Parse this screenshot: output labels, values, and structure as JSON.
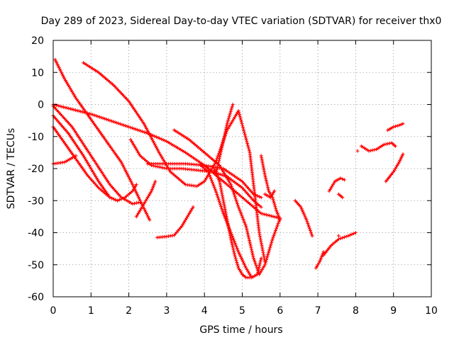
{
  "chart_data": {
    "type": "scatter",
    "title": "Day 289 of 2023, Sidereal Day-to-day VTEC variation (SDTVAR) for receiver thx0",
    "xlabel": "GPS time / hours",
    "ylabel": "SDTVAR / TECUs",
    "xlim": [
      0,
      10
    ],
    "ylim": [
      -60,
      20
    ],
    "xticks": [
      0,
      1,
      2,
      3,
      4,
      5,
      6,
      7,
      8,
      9,
      10
    ],
    "yticks": [
      -60,
      -50,
      -40,
      -30,
      -20,
      -10,
      0,
      10,
      20
    ],
    "grid": true,
    "legend": "none",
    "marker": "plus",
    "color": "#ff0000",
    "series": [
      {
        "x": [
          0.05,
          0.3,
          0.6,
          0.9,
          1.2,
          1.5,
          1.8,
          2.1,
          2.3,
          2.55
        ],
        "y": [
          14,
          8,
          2,
          -3,
          -8,
          -13,
          -18,
          -25,
          -30,
          -36
        ]
      },
      {
        "x": [
          0.0,
          0.5,
          1.0,
          1.5,
          1.8,
          2.1,
          2.3
        ],
        "y": [
          -0.5,
          -7,
          -16,
          -25,
          -29,
          -31,
          -30.5
        ]
      },
      {
        "x": [
          0.0,
          0.4,
          0.8,
          1.2,
          1.5,
          1.7,
          1.9,
          2.1,
          2.2
        ],
        "y": [
          -3.5,
          -9,
          -16,
          -24,
          -29,
          -30,
          -29,
          -27,
          -25
        ]
      },
      {
        "x": [
          0.0,
          0.3,
          0.6,
          0.9,
          1.2,
          1.5,
          1.7
        ],
        "y": [
          -7,
          -12,
          -17,
          -22,
          -26,
          -29,
          -30
        ]
      },
      {
        "x": [
          0.0,
          0.3,
          0.6
        ],
        "y": [
          -18.5,
          -18,
          -16
        ]
      },
      {
        "x": [
          0.0,
          0.5,
          1.0,
          1.5,
          2.0,
          2.5,
          3.0,
          3.5,
          4.0,
          4.5,
          5.0,
          5.5,
          6.0
        ],
        "y": [
          0,
          -1.5,
          -3,
          -5,
          -7,
          -9,
          -11.5,
          -15,
          -19,
          -24,
          -29,
          -34,
          -35.5
        ]
      },
      {
        "x": [
          0.8,
          1.2,
          1.6,
          2.0,
          2.4,
          2.8,
          3.1,
          3.5,
          3.8,
          4.0,
          4.3,
          4.6,
          4.9,
          5.2,
          5.45,
          5.6
        ],
        "y": [
          13,
          10,
          6,
          1,
          -6,
          -15,
          -21,
          -25,
          -25.5,
          -24,
          -18,
          -8,
          -2,
          -15,
          -40,
          -49
        ]
      },
      {
        "x": [
          2.05,
          2.3,
          2.6,
          3.0,
          3.4,
          3.8,
          4.2,
          4.6,
          5.0,
          5.3,
          5.5
        ],
        "y": [
          -11,
          -16,
          -19,
          -20,
          -20,
          -20.5,
          -21,
          -22.5,
          -26,
          -30,
          -32
        ]
      },
      {
        "x": [
          2.5,
          3.0,
          3.5,
          4.0,
          4.5,
          5.0,
          5.3,
          5.5
        ],
        "y": [
          -18.5,
          -18.5,
          -18.5,
          -19,
          -20,
          -24,
          -28,
          -29
        ]
      },
      {
        "x": [
          3.2,
          3.6,
          4.0,
          4.4,
          4.7,
          4.9,
          5.1,
          5.3,
          5.45,
          5.6,
          5.8,
          6.0
        ],
        "y": [
          -8,
          -11,
          -15,
          -19,
          -25,
          -32,
          -38,
          -48,
          -53,
          -50,
          -42,
          -35.5
        ]
      },
      {
        "x": [
          3.9,
          4.1,
          4.3,
          4.5,
          4.7,
          4.9,
          5.1,
          5.25,
          5.4,
          5.5
        ],
        "y": [
          -19,
          -21,
          -27,
          -34,
          -40,
          -46,
          -51,
          -54,
          -53,
          -48
        ]
      },
      {
        "x": [
          2.75,
          3.0,
          3.2,
          3.4,
          3.6,
          3.7
        ],
        "y": [
          -41.5,
          -41.2,
          -40.8,
          -38,
          -34,
          -32
        ]
      },
      {
        "x": [
          4.25,
          4.4,
          4.5,
          4.6,
          4.7,
          4.8,
          4.9,
          5.0,
          5.1,
          5.2
        ],
        "y": [
          -20,
          -24,
          -30,
          -36,
          -42,
          -47,
          -51,
          -53,
          -54,
          -54
        ]
      },
      {
        "x": [
          4.3,
          4.45,
          4.6,
          4.75
        ],
        "y": [
          -22,
          -14,
          -6,
          0
        ]
      },
      {
        "x": [
          2.2,
          2.4,
          2.6,
          2.7
        ],
        "y": [
          -35,
          -31,
          -27,
          -24
        ]
      },
      {
        "x": [
          5.5,
          5.6,
          5.7,
          5.8,
          5.9,
          6.0
        ],
        "y": [
          -16,
          -22,
          -27,
          -29,
          -33,
          -36
        ]
      },
      {
        "x": [
          5.6,
          5.75,
          5.85
        ],
        "y": [
          -28,
          -29,
          -27
        ]
      },
      {
        "x": [
          6.4,
          6.55,
          6.7,
          6.85
        ],
        "y": [
          -30,
          -32,
          -36,
          -41
        ]
      },
      {
        "x": [
          6.95,
          7.05,
          7.15
        ],
        "y": [
          -51,
          -49,
          -46
        ]
      },
      {
        "x": [
          7.15,
          7.35,
          7.55,
          7.8,
          8.0
        ],
        "y": [
          -47,
          -44,
          -42,
          -41,
          -40
        ]
      },
      {
        "x": [
          7.3,
          7.45,
          7.6,
          7.7
        ],
        "y": [
          -27,
          -24,
          -23,
          -23.5
        ]
      },
      {
        "x": [
          7.55,
          7.65
        ],
        "y": [
          -28,
          -29
        ]
      },
      {
        "x": [
          7.55
        ],
        "y": [
          -41
        ]
      },
      {
        "x": [
          8.05
        ],
        "y": [
          -14.5
        ]
      },
      {
        "x": [
          8.15,
          8.35,
          8.55,
          8.75,
          8.95,
          9.05
        ],
        "y": [
          -13,
          -14.5,
          -14,
          -12.5,
          -12,
          -13
        ]
      },
      {
        "x": [
          8.85,
          9.0,
          9.15,
          9.25
        ],
        "y": [
          -8,
          -7,
          -6.5,
          -6
        ]
      },
      {
        "x": [
          8.8,
          9.0,
          9.15,
          9.25
        ],
        "y": [
          -24,
          -21,
          -18,
          -15.5
        ]
      }
    ]
  }
}
